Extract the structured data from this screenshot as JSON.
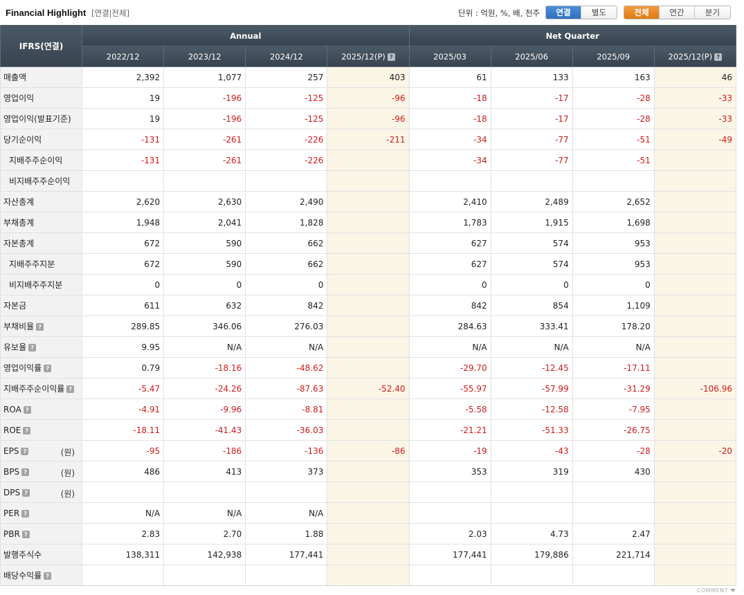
{
  "header": {
    "title": "Financial Highlight",
    "subtitle": "[연결|전체]",
    "unit": "단위 : 억원, %, 배, 천주",
    "consolidation_options": [
      "연결",
      "별도"
    ],
    "period_options": [
      "전체",
      "연간",
      "분기"
    ]
  },
  "table": {
    "corner": "IFRS(연결)",
    "group_annual": "Annual",
    "group_quarter": "Net Quarter",
    "columns": [
      "2022/12",
      "2023/12",
      "2024/12",
      "2025/12(P)",
      "2025/03",
      "2025/06",
      "2025/09",
      "2025/12(P)"
    ],
    "rows": [
      {
        "label": "매출액",
        "sub": false,
        "help": false,
        "unit": "",
        "values": [
          "2,392",
          "1,077",
          "257",
          "403",
          "61",
          "133",
          "163",
          "46"
        ]
      },
      {
        "label": "영업이익",
        "sub": false,
        "help": false,
        "unit": "",
        "values": [
          "19",
          "-196",
          "-125",
          "-96",
          "-18",
          "-17",
          "-28",
          "-33"
        ]
      },
      {
        "label": "영업이익(발표기준)",
        "sub": false,
        "help": false,
        "unit": "",
        "values": [
          "19",
          "-196",
          "-125",
          "-96",
          "-18",
          "-17",
          "-28",
          "-33"
        ]
      },
      {
        "label": "당기순이익",
        "sub": false,
        "help": false,
        "unit": "",
        "values": [
          "-131",
          "-261",
          "-226",
          "-211",
          "-34",
          "-77",
          "-51",
          "-49"
        ]
      },
      {
        "label": "지배주주순이익",
        "sub": true,
        "help": false,
        "unit": "",
        "values": [
          "-131",
          "-261",
          "-226",
          "",
          "-34",
          "-77",
          "-51",
          ""
        ]
      },
      {
        "label": "비지배주주순이익",
        "sub": true,
        "help": false,
        "unit": "",
        "values": [
          "",
          "",
          "",
          "",
          "",
          "",
          "",
          ""
        ]
      },
      {
        "label": "자산총계",
        "sub": false,
        "help": false,
        "unit": "",
        "values": [
          "2,620",
          "2,630",
          "2,490",
          "",
          "2,410",
          "2,489",
          "2,652",
          ""
        ]
      },
      {
        "label": "부채총계",
        "sub": false,
        "help": false,
        "unit": "",
        "values": [
          "1,948",
          "2,041",
          "1,828",
          "",
          "1,783",
          "1,915",
          "1,698",
          ""
        ]
      },
      {
        "label": "자본총계",
        "sub": false,
        "help": false,
        "unit": "",
        "values": [
          "672",
          "590",
          "662",
          "",
          "627",
          "574",
          "953",
          ""
        ]
      },
      {
        "label": "지배주주지분",
        "sub": true,
        "help": false,
        "unit": "",
        "values": [
          "672",
          "590",
          "662",
          "",
          "627",
          "574",
          "953",
          ""
        ]
      },
      {
        "label": "비지배주주지분",
        "sub": true,
        "help": false,
        "unit": "",
        "values": [
          "0",
          "0",
          "0",
          "",
          "0",
          "0",
          "0",
          ""
        ]
      },
      {
        "label": "자본금",
        "sub": false,
        "help": false,
        "unit": "",
        "values": [
          "611",
          "632",
          "842",
          "",
          "842",
          "854",
          "1,109",
          ""
        ]
      },
      {
        "label": "부채비율",
        "sub": false,
        "help": true,
        "unit": "",
        "values": [
          "289.85",
          "346.06",
          "276.03",
          "",
          "284.63",
          "333.41",
          "178.20",
          ""
        ]
      },
      {
        "label": "유보율",
        "sub": false,
        "help": true,
        "unit": "",
        "values": [
          "9.95",
          "N/A",
          "N/A",
          "",
          "N/A",
          "N/A",
          "N/A",
          ""
        ]
      },
      {
        "label": "영업이익률",
        "sub": false,
        "help": true,
        "unit": "",
        "values": [
          "0.79",
          "-18.16",
          "-48.62",
          "",
          "-29.70",
          "-12.45",
          "-17.11",
          ""
        ]
      },
      {
        "label": "지배주주순이익률",
        "sub": false,
        "help": true,
        "unit": "",
        "values": [
          "-5.47",
          "-24.26",
          "-87.63",
          "-52.40",
          "-55.97",
          "-57.99",
          "-31.29",
          "-106.96"
        ]
      },
      {
        "label": "ROA",
        "sub": false,
        "help": true,
        "unit": "",
        "values": [
          "-4.91",
          "-9.96",
          "-8.81",
          "",
          "-5.58",
          "-12.58",
          "-7.95",
          ""
        ]
      },
      {
        "label": "ROE",
        "sub": false,
        "help": true,
        "unit": "",
        "values": [
          "-18.11",
          "-41.43",
          "-36.03",
          "",
          "-21.21",
          "-51.33",
          "-26.75",
          ""
        ]
      },
      {
        "label": "EPS",
        "sub": false,
        "help": true,
        "unit": "(원)",
        "values": [
          "-95",
          "-186",
          "-136",
          "-86",
          "-19",
          "-43",
          "-28",
          "-20"
        ]
      },
      {
        "label": "BPS",
        "sub": false,
        "help": true,
        "unit": "(원)",
        "values": [
          "486",
          "413",
          "373",
          "",
          "353",
          "319",
          "430",
          ""
        ]
      },
      {
        "label": "DPS",
        "sub": false,
        "help": true,
        "unit": "(원)",
        "values": [
          "",
          "",
          "",
          "",
          "",
          "",
          "",
          ""
        ]
      },
      {
        "label": "PER",
        "sub": false,
        "help": true,
        "unit": "",
        "values": [
          "N/A",
          "N/A",
          "N/A",
          "",
          "",
          "",
          "",
          ""
        ]
      },
      {
        "label": "PBR",
        "sub": false,
        "help": true,
        "unit": "",
        "values": [
          "2.83",
          "2.70",
          "1.88",
          "",
          "2.03",
          "4.73",
          "2.47",
          ""
        ]
      },
      {
        "label": "발행주식수",
        "sub": false,
        "help": false,
        "unit": "",
        "values": [
          "138,311",
          "142,938",
          "177,441",
          "",
          "177,441",
          "179,886",
          "221,714",
          ""
        ]
      },
      {
        "label": "배당수익률",
        "sub": false,
        "help": true,
        "unit": "",
        "values": [
          "",
          "",
          "",
          "",
          "",
          "",
          "",
          ""
        ]
      }
    ]
  },
  "footer": {
    "comment": "COMMENT"
  },
  "colors": {
    "header_bg": "#3f4b57",
    "negative": "#d11a1a",
    "projection_bg": "#fbf5e6",
    "blue_active": "#2f6fbf",
    "orange_active": "#e07a14"
  }
}
